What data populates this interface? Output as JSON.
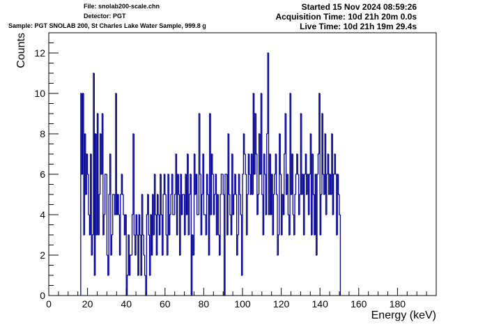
{
  "header": {
    "file": "File: snolab200-scale.chn",
    "detector": "Detector: PGT",
    "sample": "Sample: PGT SNOLAB 200, St Charles Lake Water Sample, 999.8 g",
    "started": "Started 15 Nov 2024 08:59:26",
    "acquisition": "Acquisition Time: 10d 21h 20m 0.0s",
    "live": "Live Time: 10d 21h 19m 29.4s"
  },
  "chart_data": {
    "type": "histogram",
    "xlabel": "Energy (keV)",
    "ylabel": "Counts",
    "xlim": [
      0,
      200
    ],
    "ylim": [
      0,
      13
    ],
    "xticks": [
      0,
      20,
      40,
      60,
      80,
      100,
      120,
      140,
      160,
      180
    ],
    "yticks": [
      0,
      2,
      4,
      6,
      8,
      10,
      12
    ],
    "bin_width": 0.5,
    "series": [
      {
        "color": "#000099",
        "x_start": 16.5,
        "counts": [
          10,
          6,
          10,
          3,
          8,
          5,
          7,
          6,
          4,
          3,
          7,
          2,
          3,
          11,
          1,
          8,
          3,
          9,
          3,
          5,
          8,
          6,
          9,
          3,
          4,
          6,
          6,
          2,
          1,
          5,
          7,
          2,
          3,
          5,
          5,
          4,
          10,
          4,
          5,
          4,
          2,
          5,
          6,
          5,
          4,
          3,
          4,
          0,
          1,
          3,
          1,
          2,
          2,
          4,
          8,
          3,
          2,
          4,
          3,
          1,
          4,
          3,
          1,
          5,
          3,
          2,
          1,
          0,
          4,
          5,
          3,
          1,
          4,
          2,
          5,
          3,
          6,
          4,
          2,
          5,
          4,
          3,
          6,
          4,
          2,
          5,
          6,
          5,
          3,
          2,
          6,
          3,
          4,
          5,
          6,
          4,
          4,
          5,
          7,
          3,
          6,
          5,
          2,
          6,
          4,
          5,
          5,
          3,
          6,
          4,
          7,
          3,
          5,
          6,
          0,
          3,
          2,
          7,
          5,
          6,
          4,
          4,
          9,
          6,
          3,
          5,
          7,
          4,
          4,
          3,
          6,
          5,
          2,
          9,
          4,
          7,
          6,
          4,
          5,
          6,
          3,
          5,
          3,
          2,
          5,
          6,
          6,
          5,
          0,
          6,
          6,
          3,
          8,
          5,
          4,
          3,
          7,
          4,
          5,
          6,
          5,
          2,
          3,
          6,
          5,
          4,
          1,
          6,
          8,
          7,
          6,
          3,
          5,
          7,
          6,
          5,
          7,
          5,
          10,
          6,
          9,
          7,
          4,
          5,
          8,
          6,
          10,
          5,
          3,
          7,
          6,
          4,
          8,
          12,
          4,
          7,
          4,
          6,
          3,
          5,
          6,
          7,
          5,
          2,
          3,
          8,
          6,
          3,
          5,
          4,
          7,
          9,
          5,
          6,
          4,
          3,
          10,
          5,
          7,
          4,
          3,
          5,
          6,
          7,
          6,
          4,
          5,
          9,
          5,
          6,
          3,
          6,
          7,
          5,
          6,
          4,
          6,
          8,
          3,
          7,
          5,
          3,
          6,
          2,
          6,
          7,
          10,
          3,
          5,
          9,
          6,
          5,
          8,
          4,
          6,
          7,
          5,
          6,
          5,
          8,
          4,
          6,
          7,
          6,
          3,
          6,
          5,
          4
        ]
      }
    ]
  }
}
